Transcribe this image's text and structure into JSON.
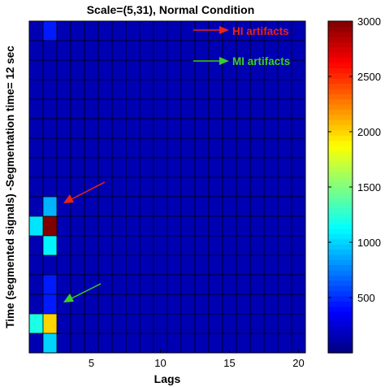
{
  "chart_data": {
    "type": "heatmap",
    "title": "Scale=(5,31), Normal Condition",
    "xlabel": "Lags",
    "ylabel": "Time (segmented signals) -Segmentation time= 12 sec",
    "x_ticks": [
      5,
      10,
      15,
      20
    ],
    "xlim": [
      0.5,
      20.5
    ],
    "n_cols": 20,
    "n_rows": 17,
    "colorbar": {
      "range": [
        0,
        3000
      ],
      "tick_labels": [
        "500",
        "1000",
        "1500",
        "2000",
        "2500",
        "3000"
      ],
      "tick_values": [
        500,
        1000,
        1500,
        2000,
        2500,
        3000
      ]
    },
    "base_value": 150,
    "cells": [
      {
        "row": 1,
        "col": 2,
        "value": 450
      },
      {
        "row": 10,
        "col": 2,
        "value": 900
      },
      {
        "row": 11,
        "col": 1,
        "value": 1050
      },
      {
        "row": 11,
        "col": 2,
        "value": 3000
      },
      {
        "row": 12,
        "col": 2,
        "value": 1100
      },
      {
        "row": 14,
        "col": 2,
        "value": 450
      },
      {
        "row": 15,
        "col": 2,
        "value": 450
      },
      {
        "row": 16,
        "col": 1,
        "value": 1200
      },
      {
        "row": 16,
        "col": 2,
        "value": 2000
      },
      {
        "row": 17,
        "col": 2,
        "value": 1000
      }
    ],
    "annotations": [
      {
        "text": "HI artifacts",
        "color": "#e8231b"
      },
      {
        "text": "MI artifacts",
        "color": "#3ccd2c"
      }
    ]
  }
}
